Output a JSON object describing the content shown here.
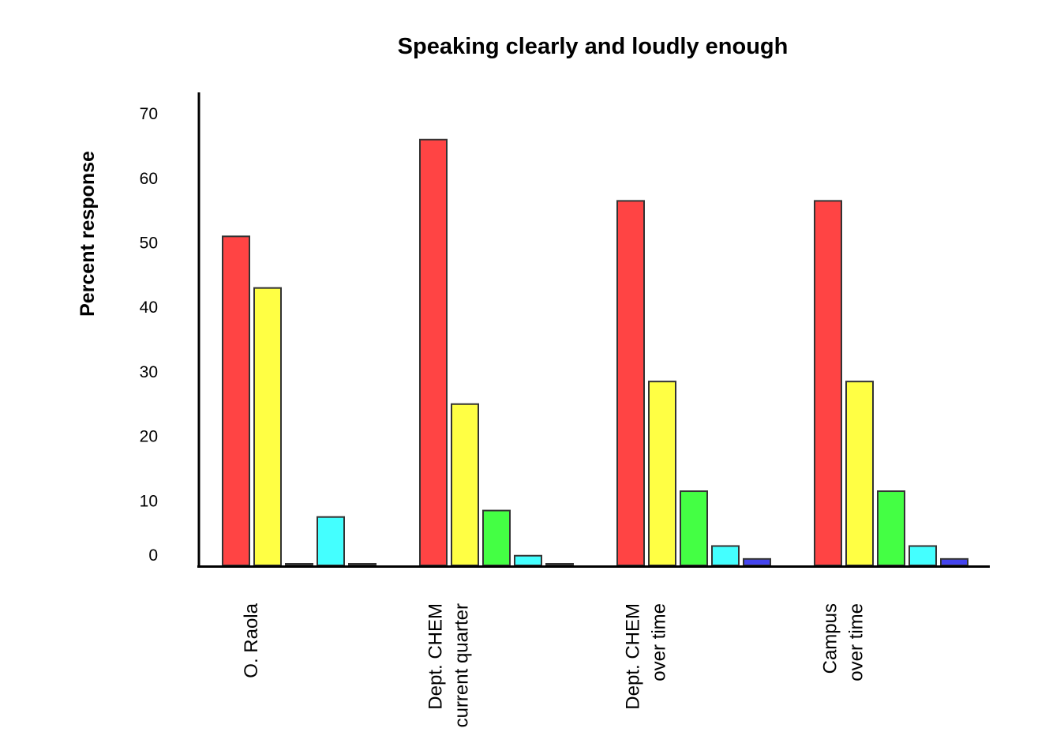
{
  "chart_data": {
    "type": "bar",
    "title": "Speaking clearly and loudly enough",
    "xlabel": "",
    "ylabel": "Percent response",
    "ylim": [
      0,
      70
    ],
    "yticks": [
      0,
      10,
      20,
      30,
      40,
      50,
      60,
      70
    ],
    "grid": false,
    "legend": "none",
    "categories": [
      [
        "O. Raola"
      ],
      [
        "Dept. CHEM",
        "current quarter"
      ],
      [
        "Dept. CHEM",
        "over time"
      ],
      [
        "Campus",
        "over time"
      ]
    ],
    "series": [
      {
        "color": "#ff4444",
        "values": [
          51,
          66,
          56.5,
          56.5
        ]
      },
      {
        "color": "#ffff44",
        "values": [
          43,
          25,
          28.5,
          28.5
        ]
      },
      {
        "color": "#44ff44",
        "values": [
          0,
          8.5,
          11.5,
          11.5
        ]
      },
      {
        "color": "#44ffff",
        "values": [
          7.5,
          1.5,
          3,
          3
        ]
      },
      {
        "color": "#4444ee",
        "values": [
          0,
          0,
          1,
          1
        ]
      }
    ]
  }
}
